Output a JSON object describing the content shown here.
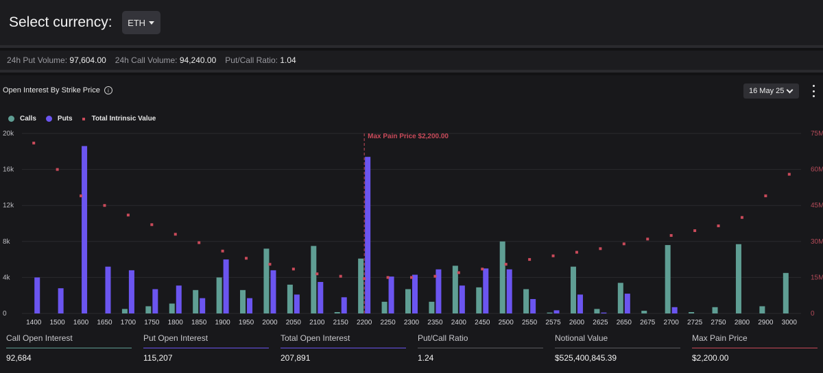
{
  "header": {
    "title": "Select currency:",
    "currency": "ETH"
  },
  "stats": [
    {
      "label": "24h Put Volume:",
      "value": "97,604.00"
    },
    {
      "label": "24h Call Volume:",
      "value": "94,240.00"
    },
    {
      "label": "Put/Call Ratio:",
      "value": "1.04"
    }
  ],
  "panel": {
    "title": "Open Interest By Strike Price",
    "info_icon": "info-icon",
    "expiry": "16 May 25",
    "menu_icon": "kebab-menu-icon"
  },
  "legend": {
    "calls": "Calls",
    "puts": "Puts",
    "intrinsic": "Total Intrinsic Value"
  },
  "colors": {
    "calls": "#5f9e94",
    "puts": "#6b55f0",
    "intrinsic": "#c94a5a",
    "maxpain": "#c94a5a"
  },
  "chart_data": {
    "type": "bar",
    "categories": [
      "1400",
      "1500",
      "1600",
      "1650",
      "1700",
      "1750",
      "1800",
      "1850",
      "1900",
      "1950",
      "2000",
      "2050",
      "2100",
      "2150",
      "2200",
      "2250",
      "2300",
      "2350",
      "2400",
      "2450",
      "2500",
      "2550",
      "2575",
      "2600",
      "2625",
      "2650",
      "2675",
      "2700",
      "2725",
      "2750",
      "2800",
      "2900",
      "3000"
    ],
    "series": [
      {
        "name": "Calls",
        "axis": "left",
        "values": [
          0,
          0,
          0,
          0,
          500,
          800,
          1100,
          2600,
          4000,
          2600,
          7200,
          3200,
          7500,
          150,
          6100,
          1300,
          2700,
          1300,
          5300,
          2900,
          8000,
          2700,
          100,
          5200,
          500,
          3400,
          300,
          7600,
          150,
          700,
          7700,
          800,
          4500
        ]
      },
      {
        "name": "Puts",
        "axis": "left",
        "values": [
          4000,
          2800,
          18600,
          5200,
          4800,
          2700,
          3100,
          1700,
          6000,
          1700,
          4800,
          2100,
          3500,
          1800,
          17400,
          4100,
          4300,
          4900,
          3100,
          5000,
          4900,
          1600,
          350,
          2100,
          100,
          2200,
          0,
          700,
          0,
          0,
          0,
          0,
          0
        ]
      },
      {
        "name": "Total Intrinsic Value",
        "axis": "right",
        "type": "scatter",
        "values": [
          71000000,
          60000000,
          49000000,
          45000000,
          41000000,
          37000000,
          33000000,
          29500000,
          26000000,
          23000000,
          20500000,
          18500000,
          16500000,
          15500000,
          14500000,
          15000000,
          15000000,
          15500000,
          17000000,
          18500000,
          20500000,
          22500000,
          24000000,
          25500000,
          27000000,
          29000000,
          31000000,
          32500000,
          34500000,
          36500000,
          40000000,
          49000000,
          58000000
        ]
      }
    ],
    "y_left": {
      "min": 0,
      "max": 20000,
      "ticks": [
        "0",
        "4k",
        "8k",
        "12k",
        "16k",
        "20k"
      ]
    },
    "y_right": {
      "min": 0,
      "max": 75000000,
      "ticks": [
        "0",
        "15M",
        "30M",
        "45M",
        "60M",
        "75M"
      ]
    },
    "max_pain": {
      "strike": "2200",
      "label": "Max Pain Price $2,200.00"
    },
    "grid": true,
    "legend_position": "top-left"
  },
  "footer": [
    {
      "label": "Call Open Interest",
      "value": "92,684",
      "color": "#5f9e94"
    },
    {
      "label": "Put Open Interest",
      "value": "115,207",
      "color": "#6b55f0"
    },
    {
      "label": "Total Open Interest",
      "value": "207,891",
      "color": "#6b55f0"
    },
    {
      "label": "Put/Call Ratio",
      "value": "1.24",
      "color": "#5a5a5e"
    },
    {
      "label": "Notional Value",
      "value": "$525,400,845.39",
      "color": "#5a5a5e"
    },
    {
      "label": "Max Pain Price",
      "value": "$2,200.00",
      "color": "#c94a5a"
    }
  ]
}
